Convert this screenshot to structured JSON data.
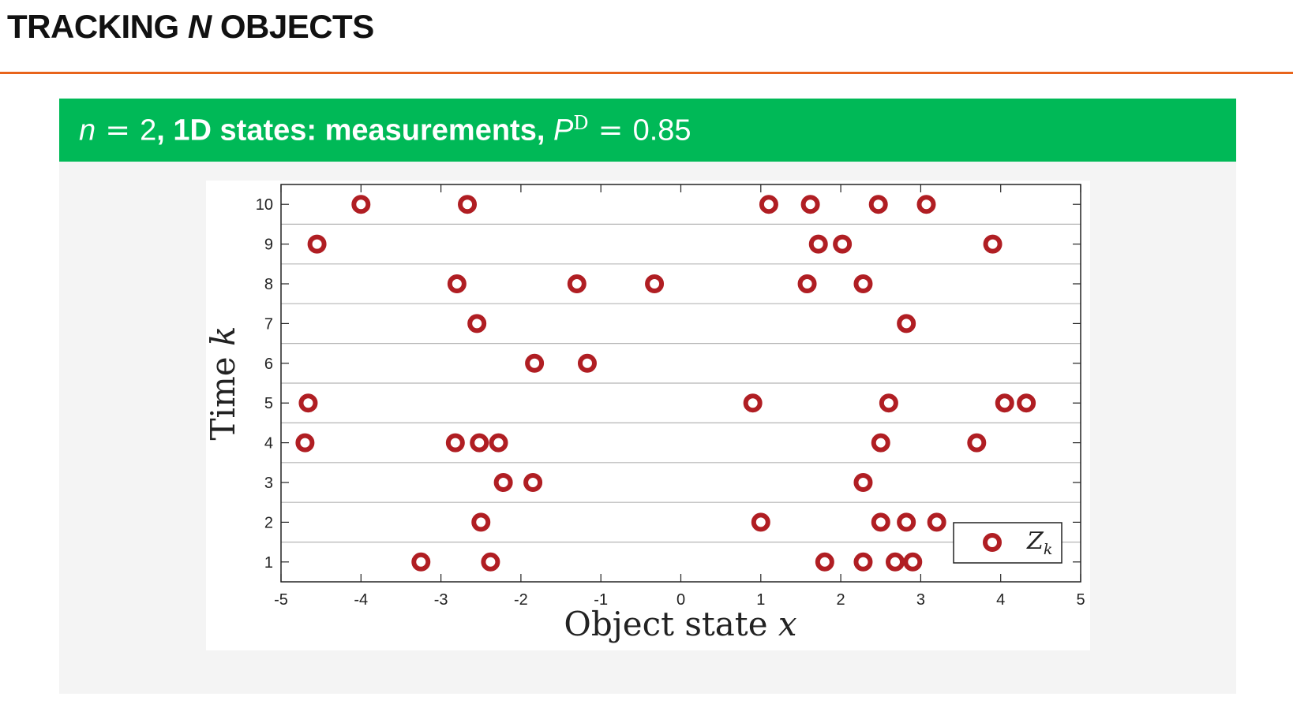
{
  "slide": {
    "title_prefix": "TRACKING ",
    "title_var": "N",
    "title_suffix": " OBJECTS"
  },
  "panel": {
    "header_var_n": "n",
    "header_eq1": " = ",
    "header_n_val": "2",
    "header_bold": ", 1D states: measurements, ",
    "header_var_p": "P",
    "header_sup": "D",
    "header_eq2": " = ",
    "header_pd_val": "0.85"
  },
  "colors": {
    "accent_rule": "#e8641b",
    "header_green": "#00b957",
    "marker": "#b01e23"
  },
  "chart_data": {
    "type": "scatter",
    "xlabel_text": "Object state ",
    "xlabel_var": "x",
    "ylabel_text": "Time ",
    "ylabel_var": "k",
    "xlim": [
      -5,
      5
    ],
    "ylim": [
      0.5,
      10.5
    ],
    "xticks": [
      -5,
      -4,
      -3,
      -2,
      -1,
      0,
      1,
      2,
      3,
      4,
      5
    ],
    "yticks": [
      1,
      2,
      3,
      4,
      5,
      6,
      7,
      8,
      9,
      10
    ],
    "horizontal_grid": true,
    "legend": {
      "position": "bottom-right",
      "label_main": "Z",
      "label_sub": "k"
    },
    "points": [
      {
        "k": 1,
        "x": [
          -3.25,
          -2.38,
          1.8,
          2.28,
          2.68,
          2.9
        ]
      },
      {
        "k": 2,
        "x": [
          -2.5,
          1.0,
          2.5,
          2.82,
          3.2
        ]
      },
      {
        "k": 3,
        "x": [
          -2.22,
          -1.85,
          2.28
        ]
      },
      {
        "k": 4,
        "x": [
          -4.7,
          -2.82,
          -2.52,
          -2.28,
          2.5,
          3.7
        ]
      },
      {
        "k": 5,
        "x": [
          -4.66,
          0.9,
          2.6,
          4.05,
          4.32
        ]
      },
      {
        "k": 6,
        "x": [
          -1.83,
          -1.17
        ]
      },
      {
        "k": 7,
        "x": [
          -2.55,
          2.82
        ]
      },
      {
        "k": 8,
        "x": [
          -2.8,
          -1.3,
          -0.33,
          1.58,
          2.28
        ]
      },
      {
        "k": 9,
        "x": [
          -4.55,
          1.72,
          2.02,
          3.9
        ]
      },
      {
        "k": 10,
        "x": [
          -4.0,
          -2.67,
          1.1,
          1.62,
          2.47,
          3.07
        ]
      }
    ]
  }
}
